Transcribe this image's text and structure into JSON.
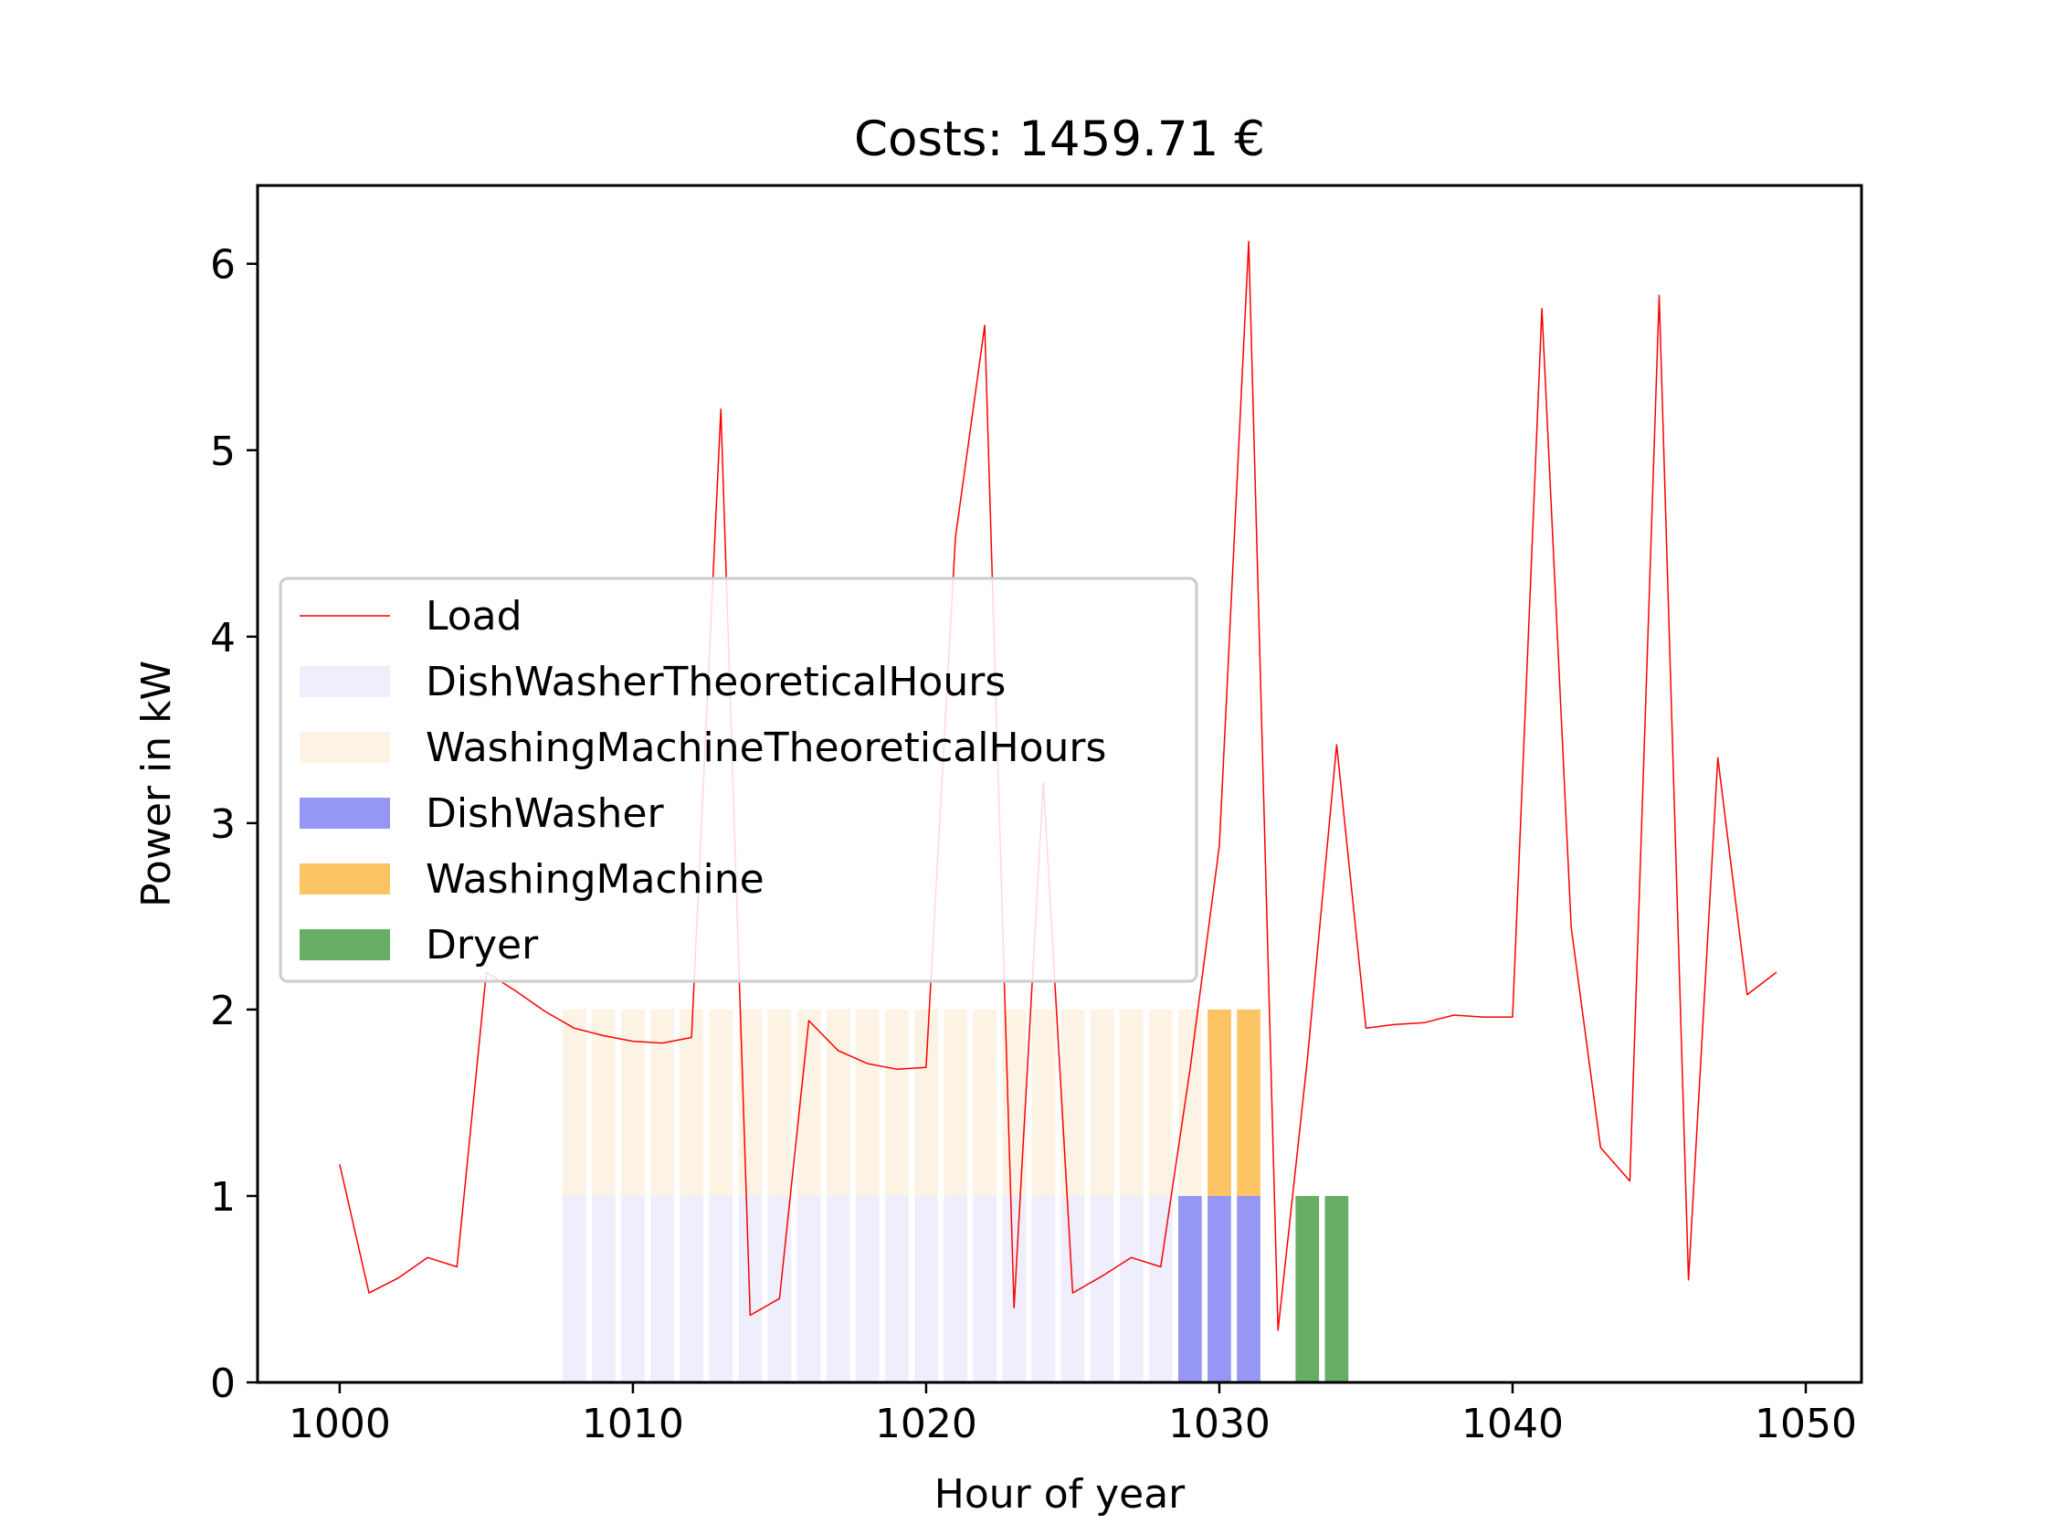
{
  "chart_data": {
    "type": "bar",
    "title": "Costs: 1459.71 €",
    "xlabel": "Hour of year",
    "ylabel": "Power in kW",
    "xlim": [
      997.2,
      1051.9
    ],
    "ylim": [
      0,
      6.42
    ],
    "xticks": [
      1000,
      1010,
      1020,
      1030,
      1040,
      1050
    ],
    "yticks": [
      0,
      1,
      2,
      3,
      4,
      5,
      6
    ],
    "grid": false,
    "legend_position": "center-left",
    "colors": {
      "load": "#ff0000",
      "dishwasher_theoretical": "#eeeefc",
      "washing_theoretical": "#fdf3e4",
      "dishwasher": "#9696f4",
      "washing_machine": "#fcc463",
      "dryer": "#66ae66"
    },
    "series": [
      {
        "name": "Load",
        "kind": "line",
        "x": [
          1000,
          1001,
          1002,
          1003,
          1004,
          1005,
          1006,
          1007,
          1008,
          1009,
          1010,
          1011,
          1012,
          1013,
          1014,
          1015,
          1016,
          1017,
          1018,
          1019,
          1020,
          1021,
          1022,
          1023,
          1024,
          1025,
          1026,
          1027,
          1028,
          1029,
          1030,
          1031,
          1032,
          1033,
          1034,
          1035,
          1036,
          1037,
          1038,
          1039,
          1040,
          1041,
          1042,
          1043,
          1044,
          1045,
          1046,
          1047,
          1048,
          1049
        ],
        "values": [
          1.17,
          0.48,
          0.56,
          0.67,
          0.62,
          2.2,
          2.1,
          1.99,
          1.9,
          1.86,
          1.83,
          1.82,
          1.85,
          5.22,
          0.36,
          0.45,
          1.94,
          1.78,
          1.71,
          1.68,
          1.69,
          4.53,
          5.67,
          0.4,
          3.22,
          0.48,
          0.57,
          0.67,
          0.62,
          1.68,
          2.88,
          6.12,
          0.28,
          1.73,
          3.42,
          1.9,
          1.92,
          1.93,
          1.97,
          1.96,
          1.96,
          5.76,
          2.44,
          1.26,
          1.08,
          5.83,
          0.55,
          3.35,
          2.08,
          2.2
        ]
      },
      {
        "name": "DishWasherTheoreticalHours",
        "kind": "bar",
        "x": [
          1008,
          1009,
          1010,
          1011,
          1012,
          1013,
          1014,
          1015,
          1016,
          1017,
          1018,
          1019,
          1020,
          1021,
          1022,
          1023,
          1024,
          1025,
          1026,
          1027,
          1028
        ],
        "values": [
          1,
          1,
          1,
          1,
          1,
          1,
          1,
          1,
          1,
          1,
          1,
          1,
          1,
          1,
          1,
          1,
          1,
          1,
          1,
          1,
          1
        ],
        "bottom": 0
      },
      {
        "name": "WashingMachineTheoreticalHours",
        "kind": "bar",
        "x": [
          1008,
          1009,
          1010,
          1011,
          1012,
          1013,
          1014,
          1015,
          1016,
          1017,
          1018,
          1019,
          1020,
          1021,
          1022,
          1023,
          1024,
          1025,
          1026,
          1027,
          1028,
          1029,
          1030,
          1031
        ],
        "values": [
          1,
          1,
          1,
          1,
          1,
          1,
          1,
          1,
          1,
          1,
          1,
          1,
          1,
          1,
          1,
          1,
          1,
          1,
          1,
          1,
          1,
          1,
          1,
          1
        ],
        "bottom": 1
      },
      {
        "name": "DishWasher",
        "kind": "bar",
        "x": [
          1029,
          1030,
          1031
        ],
        "values": [
          1,
          1,
          1
        ],
        "bottom": 0
      },
      {
        "name": "WashingMachine",
        "kind": "bar",
        "x": [
          1030,
          1031
        ],
        "values": [
          1,
          1
        ],
        "bottom": 1
      },
      {
        "name": "Dryer",
        "kind": "bar",
        "x": [
          1033,
          1034
        ],
        "values": [
          1,
          1
        ],
        "bottom": 0
      }
    ]
  }
}
